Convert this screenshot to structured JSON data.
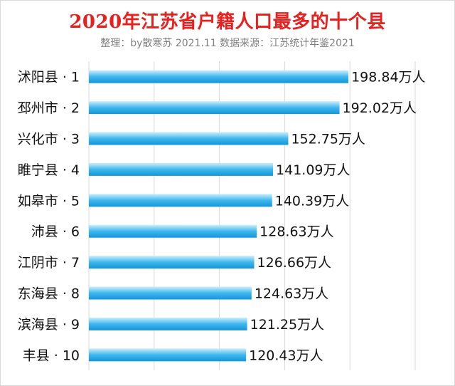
{
  "title": "2020年江苏省户籍人口最多的十个县",
  "subtitle": "整理：by散寒苏 2021.11 数据来源：江苏统计年鉴2021",
  "colors": {
    "title": "#e8201e",
    "bar_light": "#cdeefc",
    "bar_mid": "#3fb7ee",
    "bar_dark": "#1296d8"
  },
  "chart_data": {
    "type": "bar",
    "orientation": "horizontal",
    "title": "2020年江苏省户籍人口最多的十个县",
    "subtitle": "整理：by散寒苏 2021.11 数据来源：江苏统计年鉴2021",
    "categories": [
      "沭阳县 · 1",
      "邳州市 · 2",
      "兴化市 · 3",
      "睢宁县 · 4",
      "如皋市 · 5",
      "沛县 · 6",
      "江阴市 · 7",
      "东海县 · 8",
      "滨海县 · 9",
      "丰县 · 10"
    ],
    "values": [
      198.84,
      192.02,
      152.75,
      141.09,
      140.39,
      128.63,
      126.66,
      124.63,
      121.25,
      120.43
    ],
    "value_labels": [
      "198.84万人",
      "192.02万人",
      "152.75万人",
      "141.09万人",
      "140.39万人",
      "128.63万人",
      "126.66万人",
      "124.63万人",
      "121.25万人",
      "120.43万人"
    ],
    "unit": "万人",
    "xlim": [
      0,
      250
    ],
    "grid": true
  }
}
